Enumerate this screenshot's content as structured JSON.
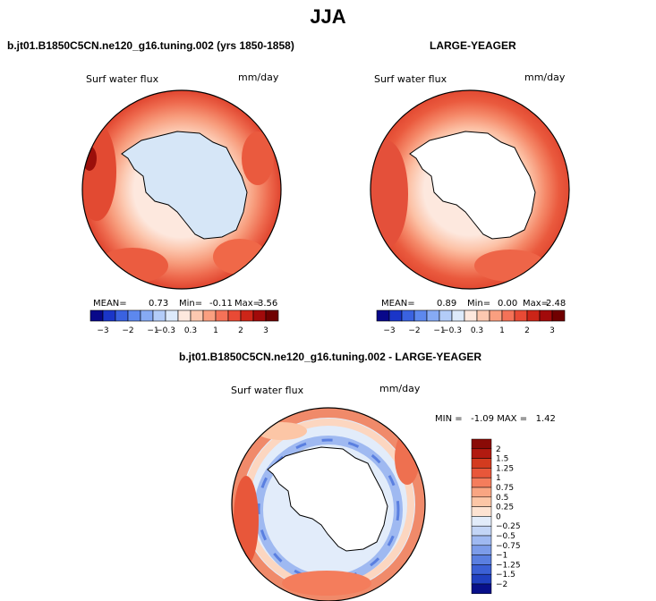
{
  "main_title": "JJA",
  "panels": [
    {
      "title": "b.jt01.B1850C5CN.ne120_g16.tuning.002 (yrs 1850-1858)",
      "variable": "Surf water flux",
      "units": "mm/day",
      "mean_label": "MEAN=",
      "mean": "0.73",
      "min_label": "Min=",
      "min": "-0.11",
      "max_label": "Max=",
      "max": "3.56",
      "ice_color": "#d6e6f7"
    },
    {
      "title": "LARGE-YEAGER",
      "variable": "Surf water flux",
      "units": "mm/day",
      "mean_label": "MEAN=",
      "mean": "0.89",
      "min_label": "Min=",
      "min": "0.00",
      "max_label": "Max=",
      "max": "2.48",
      "ice_color": "#ffffff"
    }
  ],
  "diff_panel": {
    "title": "b.jt01.B1850C5CN.ne120_g16.tuning.002 - LARGE-YEAGER",
    "variable": "Surf water flux",
    "units": "mm/day",
    "minmax": "MIN =   -1.09 MAX =   1.42"
  },
  "colorbar_top": {
    "colors": [
      "#08088a",
      "#1a35c8",
      "#3a62e0",
      "#5d88ee",
      "#86aaf4",
      "#b3ccf8",
      "#ddeafb",
      "#fde8de",
      "#fcc8b0",
      "#fa9f80",
      "#f47258",
      "#e84a35",
      "#cc2518",
      "#a20a0a",
      "#700000"
    ],
    "labels": [
      "−3",
      "−2",
      "−1",
      "−0.3",
      "0.3",
      "1",
      "2",
      "3"
    ]
  },
  "colorbar_diff": {
    "colors": [
      "#8a0a06",
      "#b21a10",
      "#d33b1f",
      "#e8573a",
      "#f47d5c",
      "#f9a582",
      "#fcc6a6",
      "#fde3d2",
      "#e2ecfa",
      "#c3d5f6",
      "#9fb9f1",
      "#7c9ce9",
      "#5a7fe0",
      "#3b60d5",
      "#2040c0",
      "#08108a"
    ],
    "labels": [
      "2",
      "1.5",
      "1.25",
      "1",
      "0.75",
      "0.5",
      "0.25",
      "0",
      "−0.25",
      "−0.5",
      "−0.75",
      "−1",
      "−1.25",
      "−1.5",
      "−2"
    ]
  }
}
